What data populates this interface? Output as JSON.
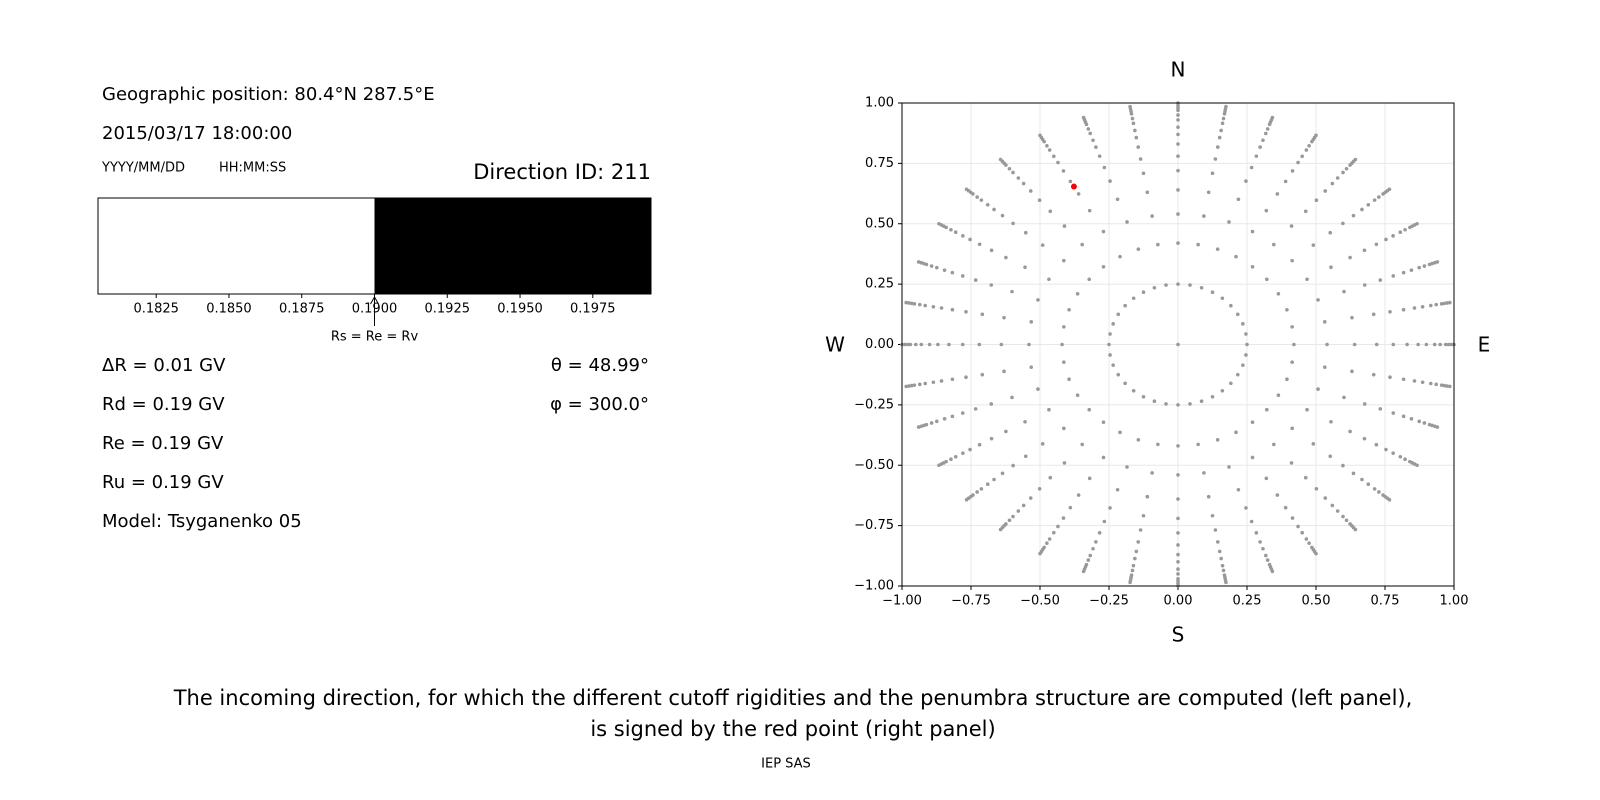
{
  "info": {
    "position": "Geographic position: 80.4°N 287.5°E",
    "datetime": "2015/03/17 18:00:00",
    "date_format": "YYYY/MM/DD",
    "time_format": "HH:MM:SS",
    "direction": "Direction ID: 211",
    "delta_r": "ΔR = 0.01 GV",
    "rd": "Rd = 0.19 GV",
    "re": "Re = 0.19 GV",
    "ru": "Ru = 0.19 GV",
    "model": "Model: Tsyganenko 05",
    "theta": "θ = 48.99°",
    "phi": "φ = 300.0°"
  },
  "chart_data": [
    {
      "type": "penumbra",
      "xlim": [
        0.1805,
        0.1995
      ],
      "xticks": [
        0.1825,
        {
          "value": 0.185,
          "label": "0.1850"
        },
        0.1875,
        {
          "value": 0.19,
          "label": "0.1900"
        },
        0.1925,
        {
          "value": 0.195,
          "label": "0.1950"
        },
        0.1975
      ],
      "segments": [
        {
          "x": [
            0.1805,
            0.19
          ],
          "color": "#ffffff"
        },
        {
          "x": [
            0.19,
            0.1995
          ],
          "color": "#000000"
        }
      ],
      "annotation": {
        "text": "Rs = Re = Rv",
        "x": 0.19
      }
    },
    {
      "type": "scatter",
      "xlim": [
        -1,
        1
      ],
      "ylim": [
        -1,
        1
      ],
      "xticks": [
        {
          "value": -1,
          "label": "−1.00"
        },
        {
          "value": -0.75,
          "label": "−0.75"
        },
        {
          "value": -0.5,
          "label": "−0.50"
        },
        {
          "value": -0.25,
          "label": "−0.25"
        },
        {
          "value": 0,
          "label": "0.00"
        },
        {
          "value": 0.25,
          "label": "0.25"
        },
        {
          "value": 0.5,
          "label": "0.50"
        },
        {
          "value": 0.75,
          "label": "0.75"
        },
        {
          "value": 1,
          "label": "1.00"
        }
      ],
      "yticks": [
        {
          "value": -1,
          "label": "−1.00"
        },
        {
          "value": -0.75,
          "label": "−0.75"
        },
        {
          "value": -0.5,
          "label": "−0.50"
        },
        {
          "value": -0.25,
          "label": "−0.25"
        },
        {
          "value": 0,
          "label": "0.00"
        },
        {
          "value": 0.25,
          "label": "0.25"
        },
        {
          "value": 0.5,
          "label": "0.50"
        },
        {
          "value": 0.75,
          "label": "0.75"
        },
        {
          "value": 1,
          "label": "1.00"
        }
      ],
      "grid": true,
      "compass": {
        "north": "N",
        "south": "S",
        "west": "W",
        "east": "E"
      },
      "direction_grid": {
        "color": "#999999",
        "azimuths": [
          0,
          10,
          20,
          30,
          40,
          50,
          60,
          70,
          80,
          90,
          100,
          110,
          120,
          130,
          140,
          150,
          160,
          170,
          180,
          190,
          200,
          210,
          220,
          230,
          240,
          250,
          260,
          270,
          280,
          290,
          300,
          310,
          320,
          330,
          340,
          350
        ],
        "radii": [
          0.25,
          0.42,
          0.54,
          0.64,
          0.72,
          0.78,
          0.83,
          0.87,
          0.9,
          0.93,
          0.95,
          0.97,
          0.98,
          0.99,
          1.0
        ]
      },
      "points": [
        {
          "x": 0,
          "y": 0,
          "color": "#999999"
        },
        {
          "x": -0.377,
          "y": 0.654,
          "color": "#ff0000"
        }
      ]
    }
  ],
  "caption": [
    "The incoming direction, for which the different cutoff rigidities and the penumbra structure are computed (left panel),",
    "is signed by the red point (right panel)"
  ],
  "footer": "IEP SAS"
}
